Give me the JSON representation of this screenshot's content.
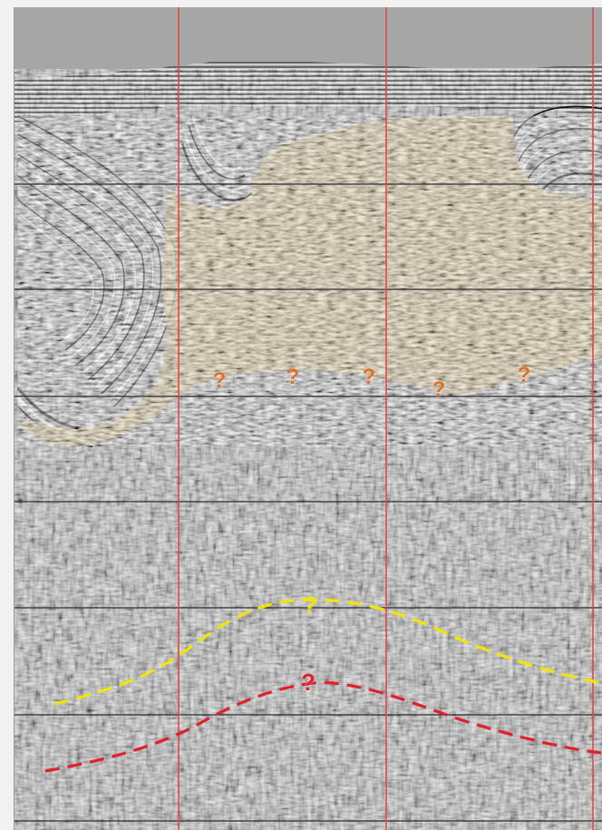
{
  "section": {
    "salt_body_color": "#d9c38e",
    "background_color": "#a9a9a9",
    "well_line_color": "#e04848",
    "gridline_color": "#2a2a2a",
    "horizon_colors": {
      "upper": "#f2e600",
      "lower": "#e0202a"
    }
  },
  "question_marks": {
    "base_salt": [
      {
        "text": "?",
        "color": "#e07028"
      },
      {
        "text": "?",
        "color": "#e07028"
      },
      {
        "text": "?",
        "color": "#e07028"
      },
      {
        "text": "?",
        "color": "#e07028"
      },
      {
        "text": "?",
        "color": "#e07028"
      }
    ],
    "upper_horizon": {
      "text": "?",
      "color": "#f2e600"
    },
    "lower_horizon": {
      "text": "?",
      "color": "#e0202a"
    }
  }
}
